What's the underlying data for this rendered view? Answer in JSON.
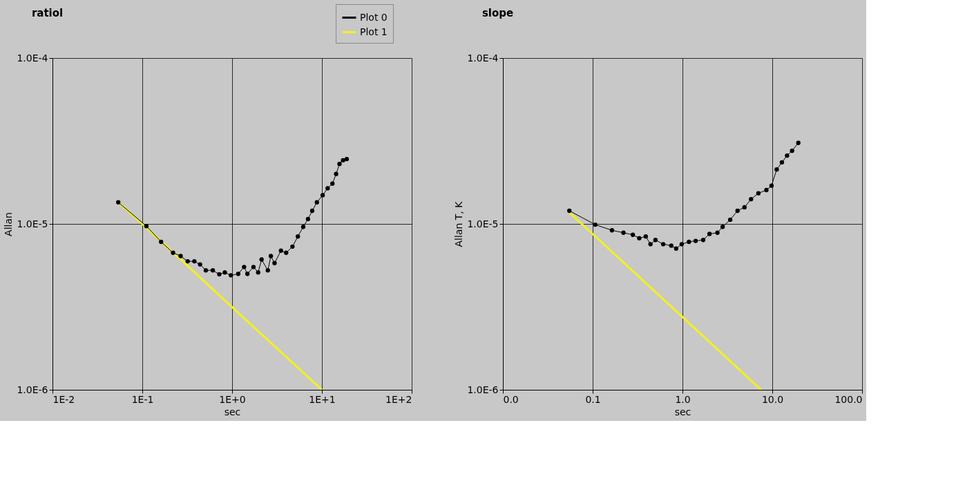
{
  "chart_data": [
    {
      "type": "line",
      "title": "ratiol",
      "xlabel": "sec",
      "ylabel": "Allan",
      "log": "xy",
      "grid": true,
      "legend": "top right",
      "xlim": [
        0.01,
        100
      ],
      "ylim": [
        1e-06,
        0.0001
      ],
      "xticks": [
        {
          "value": 0.01,
          "label": "1E-2"
        },
        {
          "value": 0.1,
          "label": "1E-1"
        },
        {
          "value": 1,
          "label": "1E+0"
        },
        {
          "value": 10,
          "label": "1E+1"
        },
        {
          "value": 100,
          "label": "1E+2"
        }
      ],
      "yticks": [
        {
          "value": 1e-06,
          "label": "1.0E-6"
        },
        {
          "value": 1e-05,
          "label": "1.0E-5"
        },
        {
          "value": 0.0001,
          "label": "1.0E-4"
        }
      ],
      "series": [
        {
          "name": "Plot 0",
          "color": "#000000",
          "marker": "circle",
          "x": [
            0.054,
            0.111,
            0.162,
            0.22,
            0.267,
            0.32,
            0.38,
            0.44,
            0.51,
            0.61,
            0.72,
            0.83,
            0.97,
            1.17,
            1.36,
            1.48,
            1.73,
            1.95,
            2.13,
            2.5,
            2.7,
            2.97,
            3.5,
            4.0,
            4.7,
            5.4,
            6.2,
            7.0,
            7.8,
            8.8,
            10.2,
            11.6,
            13.1,
            14.4,
            15.7,
            17.2,
            18.9
          ],
          "values": [
            1.35e-05,
            9.7e-06,
            7.8e-06,
            6.7e-06,
            6.4e-06,
            5.95e-06,
            5.95e-06,
            5.7e-06,
            5.25e-06,
            5.25e-06,
            4.97e-06,
            5.1e-06,
            4.9e-06,
            5e-06,
            5.5e-06,
            5e-06,
            5.5e-06,
            5.1e-06,
            6.1e-06,
            5.25e-06,
            6.4e-06,
            5.8e-06,
            6.9e-06,
            6.7e-06,
            7.3e-06,
            8.4e-06,
            9.6e-06,
            1.07e-05,
            1.2e-05,
            1.35e-05,
            1.49e-05,
            1.64e-05,
            1.75e-05,
            2e-05,
            2.3e-05,
            2.42e-05,
            2.46e-05
          ]
        },
        {
          "name": "Plot 1",
          "color": "#f5f020",
          "marker": "none",
          "x": [
            0.054,
            0.1,
            1,
            10
          ],
          "values": [
            1.35e-05,
            1e-05,
            3.15e-06,
            1e-06
          ]
        }
      ]
    },
    {
      "type": "line",
      "title": "slope",
      "xlabel": "sec",
      "ylabel": "Allan T, K",
      "log": "xy",
      "grid": true,
      "legend": "top right",
      "xlim": [
        0.01,
        100
      ],
      "ylim": [
        1e-06,
        0.0001
      ],
      "xticks": [
        {
          "value": 0.01,
          "label": "0.0"
        },
        {
          "value": 0.1,
          "label": "0.1"
        },
        {
          "value": 1,
          "label": "1.0"
        },
        {
          "value": 10,
          "label": "10.0"
        },
        {
          "value": 100,
          "label": "100.0"
        }
      ],
      "yticks": [
        {
          "value": 1e-06,
          "label": "1.0E-6"
        },
        {
          "value": 1e-05,
          "label": "1.0E-5"
        },
        {
          "value": 0.0001,
          "label": "1.0E-4"
        }
      ],
      "series": [
        {
          "name": "Plot 0",
          "color": "#000000",
          "marker": "circle",
          "x": [
            0.055,
            0.107,
            0.164,
            0.22,
            0.28,
            0.33,
            0.39,
            0.44,
            0.5,
            0.61,
            0.75,
            0.85,
            0.98,
            1.18,
            1.4,
            1.7,
            2.0,
            2.45,
            2.8,
            3.4,
            4.1,
            4.9,
            5.8,
            7.0,
            8.6,
            9.8,
            11.2,
            12.8,
            14.6,
            16.6,
            19.5
          ],
          "values": [
            1.2e-05,
            9.9e-06,
            9.15e-06,
            8.85e-06,
            8.6e-06,
            8.2e-06,
            8.4e-06,
            7.55e-06,
            8e-06,
            7.55e-06,
            7.4e-06,
            7.1e-06,
            7.55e-06,
            7.8e-06,
            7.9e-06,
            8e-06,
            8.7e-06,
            8.85e-06,
            9.6e-06,
            1.06e-05,
            1.2e-05,
            1.26e-05,
            1.41e-05,
            1.53e-05,
            1.6e-05,
            1.7e-05,
            2.13e-05,
            2.35e-05,
            2.58e-05,
            2.76e-05,
            3.08e-05
          ]
        },
        {
          "name": "Plot 1",
          "color": "#f5f020",
          "marker": "none",
          "x": [
            0.055,
            0.1,
            1,
            7.5
          ],
          "values": [
            1.17e-05,
            8.7e-06,
            2.75e-06,
            1e-06
          ]
        }
      ]
    }
  ]
}
